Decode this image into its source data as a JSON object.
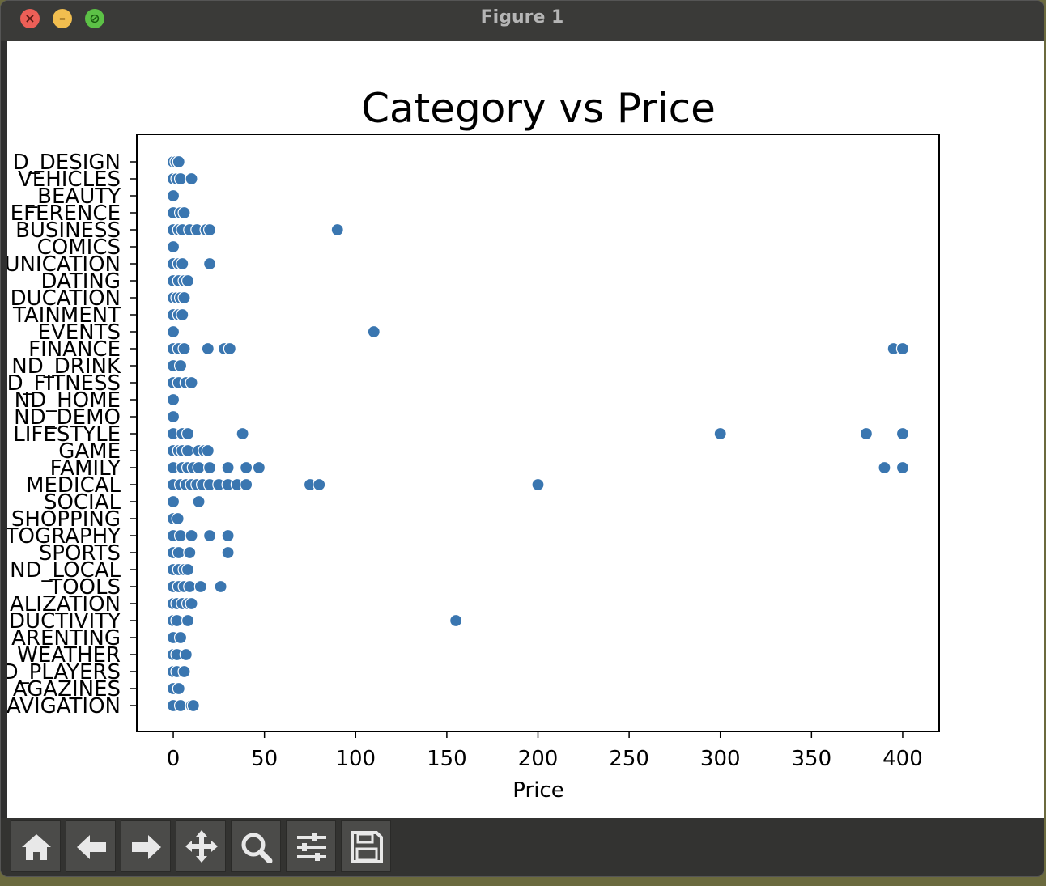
{
  "window": {
    "title": "Figure 1"
  },
  "toolbar": {
    "buttons": [
      {
        "name": "home-icon"
      },
      {
        "name": "back-arrow-icon"
      },
      {
        "name": "forward-arrow-icon"
      },
      {
        "name": "pan-move-icon"
      },
      {
        "name": "zoom-magnifier-icon"
      },
      {
        "name": "configure-subplots-icon"
      },
      {
        "name": "save-disk-icon"
      }
    ]
  },
  "colors": {
    "marker": "#3a76b0",
    "marker_edge": "#ffffff",
    "window_bg": "#3a3a38"
  },
  "chart_data": {
    "type": "scatter",
    "title": "Category vs Price",
    "xlabel": "Price",
    "ylabel": "",
    "xlim": [
      -20,
      420
    ],
    "xticks": [
      0,
      50,
      100,
      150,
      200,
      250,
      300,
      350,
      400
    ],
    "xtick_labels": [
      "0",
      "50",
      "100",
      "150",
      "200",
      "250",
      "300",
      "350",
      "400"
    ],
    "categories": [
      "D_DESIGN",
      "VEHICLES",
      "_BEAUTY",
      "EFERENCE",
      "BUSINESS",
      "COMICS",
      "UNICATION",
      "DATING",
      "DUCATION",
      "TAINMENT",
      "EVENTS",
      "FINANCE",
      "ND_DRINK",
      "D_FITNESS",
      "ND_HOME",
      "ND_DEMO",
      "LIFESTYLE",
      "GAME",
      "FAMILY",
      "MEDICAL",
      "SOCIAL",
      "SHOPPING",
      "TOGRAPHY",
      "SPORTS",
      "ND_LOCAL",
      "TOOLS",
      "ALIZATION",
      "DUCTIVITY",
      "ARENTING",
      "WEATHER",
      "D_PLAYERS",
      "AGAZINES",
      "AVIGATION"
    ],
    "points": [
      [
        0,
        [
          0,
          1.5,
          3
        ]
      ],
      [
        1,
        [
          0,
          2,
          4,
          10
        ]
      ],
      [
        2,
        [
          0
        ]
      ],
      [
        3,
        [
          0,
          4,
          6
        ]
      ],
      [
        4,
        [
          0,
          3,
          5,
          9,
          13,
          18,
          20,
          90
        ]
      ],
      [
        5,
        [
          0
        ]
      ],
      [
        6,
        [
          0,
          3,
          5,
          20
        ]
      ],
      [
        7,
        [
          0,
          3,
          6,
          8
        ]
      ],
      [
        8,
        [
          0,
          2,
          4,
          6
        ]
      ],
      [
        9,
        [
          0,
          3,
          5
        ]
      ],
      [
        10,
        [
          0,
          110
        ]
      ],
      [
        11,
        [
          0,
          3,
          6,
          19,
          28,
          31,
          395,
          400
        ]
      ],
      [
        12,
        [
          0,
          4
        ]
      ],
      [
        13,
        [
          0,
          3,
          7,
          10
        ]
      ],
      [
        14,
        [
          0
        ]
      ],
      [
        15,
        [
          0
        ]
      ],
      [
        16,
        [
          0,
          5,
          8,
          38,
          300,
          380,
          400
        ]
      ],
      [
        17,
        [
          0,
          3,
          5,
          8,
          14,
          17,
          19
        ]
      ],
      [
        18,
        [
          0,
          5,
          8,
          11,
          14,
          20,
          30,
          40,
          47,
          390,
          400
        ]
      ],
      [
        19,
        [
          0,
          4,
          7,
          10,
          13,
          16,
          20,
          25,
          30,
          35,
          40,
          75,
          80,
          200
        ]
      ],
      [
        20,
        [
          0,
          14
        ]
      ],
      [
        21,
        [
          0,
          2.5
        ]
      ],
      [
        22,
        [
          0,
          4,
          10,
          20,
          30
        ]
      ],
      [
        23,
        [
          0,
          3,
          9,
          30
        ]
      ],
      [
        24,
        [
          0,
          3,
          6,
          8
        ]
      ],
      [
        25,
        [
          0,
          3,
          6,
          9,
          15,
          26
        ]
      ],
      [
        26,
        [
          0,
          2,
          5,
          8,
          10
        ]
      ],
      [
        27,
        [
          0,
          2,
          8,
          155
        ]
      ],
      [
        28,
        [
          0,
          4
        ]
      ],
      [
        29,
        [
          0,
          2,
          7
        ]
      ],
      [
        30,
        [
          0,
          2,
          6
        ]
      ],
      [
        31,
        [
          0,
          3
        ]
      ],
      [
        32,
        [
          0,
          4,
          10,
          11
        ]
      ]
    ]
  }
}
